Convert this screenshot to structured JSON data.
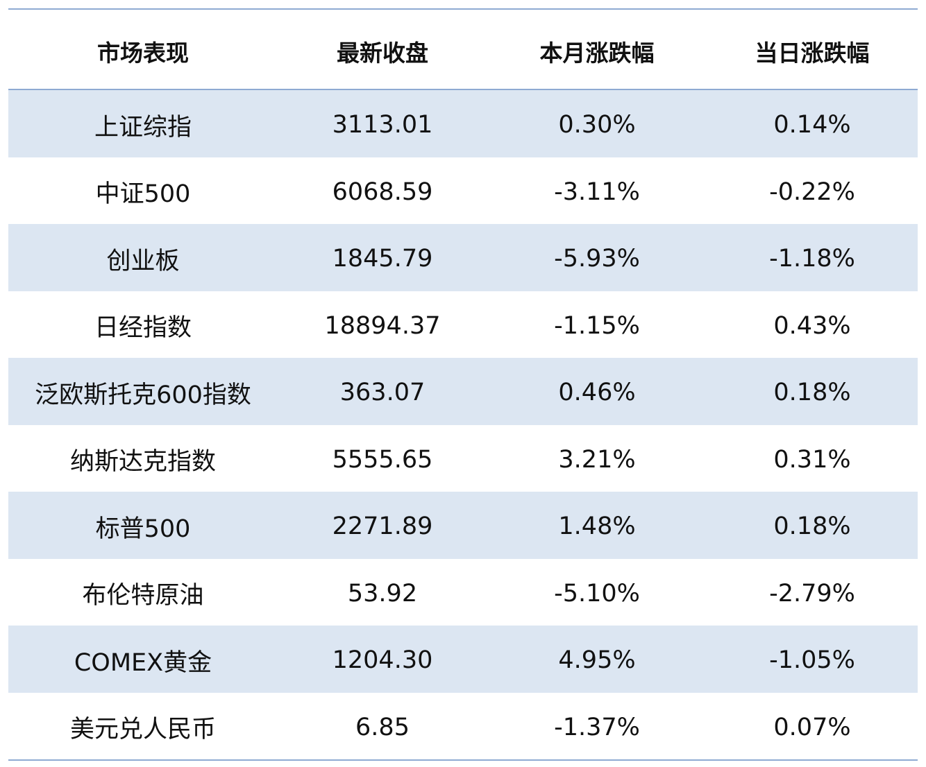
{
  "table": {
    "headers": [
      "市场表现",
      "最新收盘",
      "本月涨跌幅",
      "当日涨跌幅"
    ],
    "rows": [
      [
        "上证综指",
        "3113.01",
        "0.30%",
        "0.14%"
      ],
      [
        "中证500",
        "6068.59",
        "-3.11%",
        "-0.22%"
      ],
      [
        "创业板",
        "1845.79",
        "-5.93%",
        "-1.18%"
      ],
      [
        "日经指数",
        "18894.37",
        "-1.15%",
        "0.43%"
      ],
      [
        "泛欧斯托克600指数",
        "363.07",
        "0.46%",
        "0.18%"
      ],
      [
        "纳斯达克指数",
        "5555.65",
        "3.21%",
        "0.31%"
      ],
      [
        "标普500",
        "2271.89",
        "1.48%",
        "0.18%"
      ],
      [
        "布伦特原油",
        "53.92",
        "-5.10%",
        "-2.79%"
      ],
      [
        "COMEX黄金",
        "1204.30",
        "4.95%",
        "-1.05%"
      ],
      [
        "美元兑人民币",
        "6.85",
        "-1.37%",
        "0.07%"
      ]
    ]
  },
  "colors": {
    "rule": "#8eaad2",
    "band": "#dce6f2",
    "text": "#111111"
  }
}
